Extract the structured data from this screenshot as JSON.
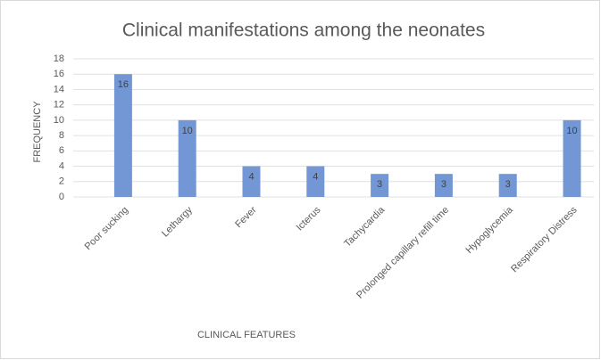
{
  "chart_data": {
    "type": "bar",
    "title": "Clinical manifestations among the neonates",
    "xlabel": "CLINICAL FEATURES",
    "ylabel": "FREQUENCY",
    "categories": [
      "Poor sucking",
      "Lethargy",
      "Fever",
      "Icterus",
      "Tachycardia",
      "Prolonged capillary refill time",
      "Hypoglycemia",
      "Respiratory Distress"
    ],
    "values": [
      16,
      10,
      4,
      4,
      3,
      3,
      3,
      10
    ],
    "color": "#7397d4",
    "ylim": [
      0,
      18
    ],
    "yticks": [
      0,
      2,
      4,
      6,
      8,
      10,
      12,
      14,
      16,
      18
    ],
    "grid": true
  }
}
